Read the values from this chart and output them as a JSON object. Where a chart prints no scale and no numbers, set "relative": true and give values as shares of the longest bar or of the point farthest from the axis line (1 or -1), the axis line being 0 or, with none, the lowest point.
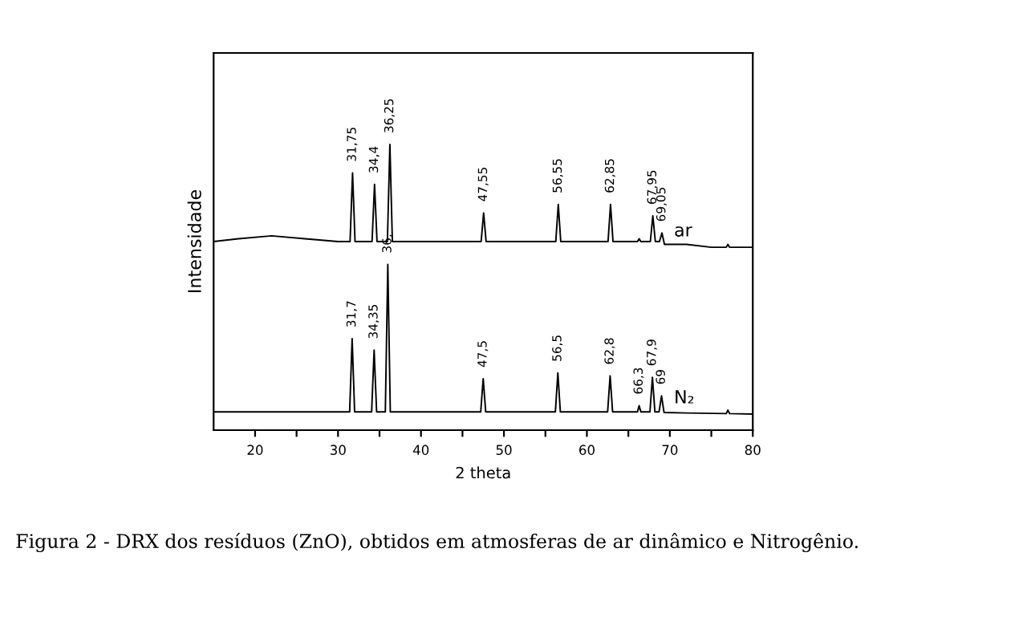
{
  "chart_data": {
    "type": "line",
    "relative": true,
    "xlabel": "2 theta",
    "ylabel": "Intensidade",
    "xlim": [
      15,
      80
    ],
    "xticks": [
      20,
      {
        "value": 25,
        "label": null
      },
      30,
      {
        "value": 35,
        "label": null
      },
      40,
      {
        "value": 45,
        "label": null
      },
      50,
      {
        "value": 55,
        "label": null
      },
      60,
      {
        "value": 65,
        "label": null
      },
      70,
      {
        "value": 75,
        "label": null
      },
      80
    ],
    "grid": false,
    "legend": false,
    "marker": "none",
    "line_style": "solid",
    "series": [
      {
        "name": "ar",
        "color": "#000000",
        "x": [
          15,
          18,
          22,
          26,
          30,
          31.45,
          31.75,
          32.05,
          34.1,
          34.4,
          34.7,
          35.95,
          36.25,
          36.55,
          40,
          47.25,
          47.55,
          47.85,
          52,
          56.25,
          56.55,
          56.85,
          60,
          62.55,
          62.85,
          63.15,
          66.1,
          66.3,
          66.5,
          67.65,
          67.95,
          68.25,
          68.75,
          69.05,
          69.35,
          72,
          75,
          76.8,
          77,
          77.2,
          80
        ],
        "values": [
          0.66,
          0.67,
          0.68,
          0.67,
          0.66,
          0.66,
          0.9,
          0.66,
          0.66,
          0.86,
          0.66,
          0.66,
          1.0,
          0.66,
          0.66,
          0.66,
          0.76,
          0.66,
          0.66,
          0.66,
          0.79,
          0.66,
          0.66,
          0.66,
          0.79,
          0.66,
          0.66,
          0.67,
          0.66,
          0.66,
          0.75,
          0.66,
          0.66,
          0.69,
          0.65,
          0.65,
          0.64,
          0.64,
          0.65,
          0.64,
          0.64
        ]
      },
      {
        "name": "N₂",
        "color": "#000000",
        "x": [
          15,
          20,
          25,
          30,
          31.4,
          31.7,
          32.0,
          34.05,
          34.35,
          34.65,
          35.7,
          36.0,
          36.3,
          40,
          47.2,
          47.5,
          47.8,
          52,
          56.2,
          56.5,
          56.8,
          60,
          62.5,
          62.8,
          63.1,
          66.1,
          66.3,
          66.5,
          67.6,
          67.9,
          68.2,
          68.7,
          69.0,
          69.3,
          72,
          76.8,
          77,
          77.2,
          80
        ],
        "values": [
          0.064,
          0.064,
          0.064,
          0.064,
          0.064,
          0.32,
          0.064,
          0.064,
          0.28,
          0.064,
          0.064,
          0.58,
          0.064,
          0.064,
          0.064,
          0.18,
          0.064,
          0.064,
          0.064,
          0.2,
          0.064,
          0.064,
          0.064,
          0.19,
          0.064,
          0.064,
          0.086,
          0.064,
          0.064,
          0.185,
          0.064,
          0.064,
          0.12,
          0.062,
          0.06,
          0.058,
          0.07,
          0.058,
          0.056
        ]
      }
    ],
    "annotations": [
      {
        "text": "31,75",
        "x": 31.75,
        "y": 0.9
      },
      {
        "text": "34,4",
        "x": 34.4,
        "y": 0.86
      },
      {
        "text": "36,25",
        "x": 36.25,
        "y": 1.0
      },
      {
        "text": "47,55",
        "x": 47.55,
        "y": 0.76
      },
      {
        "text": "56,55",
        "x": 56.55,
        "y": 0.79
      },
      {
        "text": "62,85",
        "x": 62.85,
        "y": 0.79
      },
      {
        "text": "67,95",
        "x": 67.95,
        "y": 0.75
      },
      {
        "text": "69,05",
        "x": 69.05,
        "y": 0.69
      },
      {
        "text": "31,7",
        "x": 31.7,
        "y": 0.32
      },
      {
        "text": "34,35",
        "x": 34.35,
        "y": 0.28
      },
      {
        "text": "36,",
        "x": 36.0,
        "y": 0.58
      },
      {
        "text": "47,5",
        "x": 47.5,
        "y": 0.18
      },
      {
        "text": "56,5",
        "x": 56.5,
        "y": 0.2
      },
      {
        "text": "62,8",
        "x": 62.8,
        "y": 0.19
      },
      {
        "text": "66,3",
        "x": 66.3,
        "y": 0.086
      },
      {
        "text": "67,9",
        "x": 67.9,
        "y": 0.185
      },
      {
        "text": "69",
        "x": 69.0,
        "y": 0.12
      },
      "Figura 2 - DRX dos resíduos (ZnO), obtidos em atmosferas de ar dinâmico e Nitrogênio."
    ]
  }
}
